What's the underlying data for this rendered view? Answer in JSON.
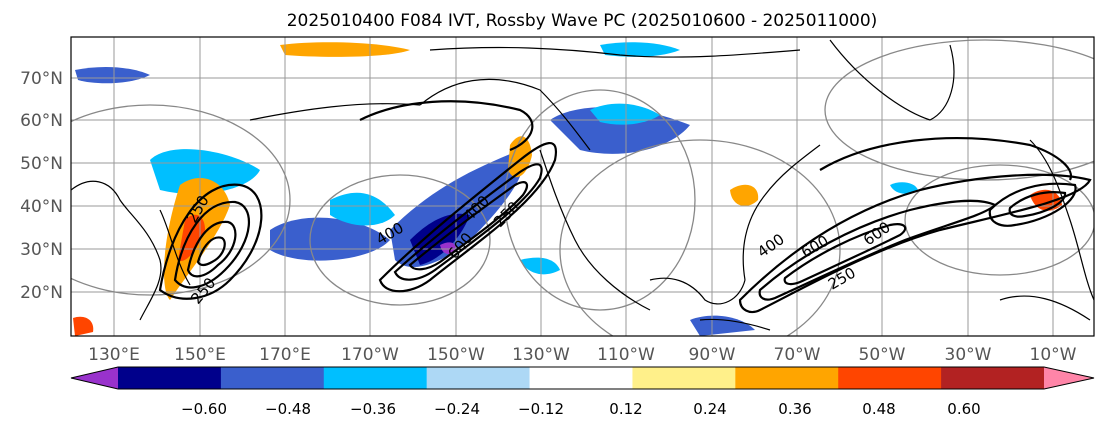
{
  "title": "2025010400 F084 IVT, Rossby Wave PC (2025010600 - 2025011000)",
  "lat_labels": [
    "70°N",
    "60°N",
    "50°N",
    "40°N",
    "30°N",
    "20°N"
  ],
  "lon_labels": [
    "130°E",
    "150°E",
    "170°E",
    "170°W",
    "150°W",
    "130°W",
    "110°W",
    "90°W",
    "70°W",
    "50°W",
    "30°W",
    "10°W"
  ],
  "contour_labels": [
    "250",
    "250",
    "400",
    "400",
    "600",
    "250",
    "600",
    "400",
    "600",
    "250"
  ],
  "colorbar": {
    "ticks": [
      "−0.60",
      "−0.48",
      "−0.36",
      "−0.24",
      "−0.12",
      "0.12",
      "0.24",
      "0.36",
      "0.48",
      "0.60"
    ],
    "colors": {
      "below": "#9932cc",
      "bins": [
        "#00008b",
        "#3a5fcd",
        "#00bfff",
        "#add8f5",
        "#ffffff",
        "#fff08a",
        "#ffa500",
        "#ff4500",
        "#b22222",
        "#ff85a8"
      ]
    }
  },
  "colors": {
    "ivt_contour": "#000000",
    "graticule": "#999999",
    "rings": "#888888",
    "coastline": "#000000"
  }
}
